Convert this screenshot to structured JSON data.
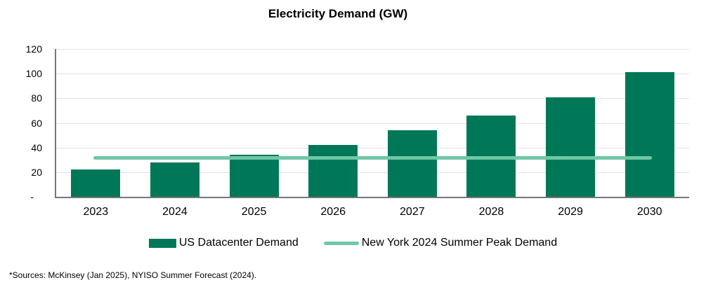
{
  "chart_data": {
    "type": "bar",
    "title": "Electricity Demand (GW)",
    "categories": [
      "2023",
      "2024",
      "2025",
      "2026",
      "2027",
      "2028",
      "2029",
      "2030"
    ],
    "series": [
      {
        "name": "US Datacenter Demand",
        "type": "bar",
        "color": "#007858",
        "values": [
          22,
          28,
          34,
          42,
          54,
          66,
          81,
          101
        ]
      },
      {
        "name": "New York 2024 Summer Peak Demand",
        "type": "line",
        "color": "#6fc7a5",
        "value": 31.4
      }
    ],
    "xlabel": "",
    "ylabel": "",
    "ylim": [
      0,
      120
    ],
    "ytick_interval": 20,
    "ytick_labels": [
      "-",
      "20",
      "40",
      "60",
      "80",
      "100",
      "120"
    ],
    "grid": true,
    "legend_position": "bottom"
  },
  "colors": {
    "bar": "#007858",
    "line": "#6fc7a5",
    "gridline": "#e2e2e2",
    "axis": "#767676",
    "text": "#000000"
  },
  "footnote": {
    "text": "*Sources: McKinsey (Jan 2025), NYISO Summer Forecast (2024)."
  }
}
